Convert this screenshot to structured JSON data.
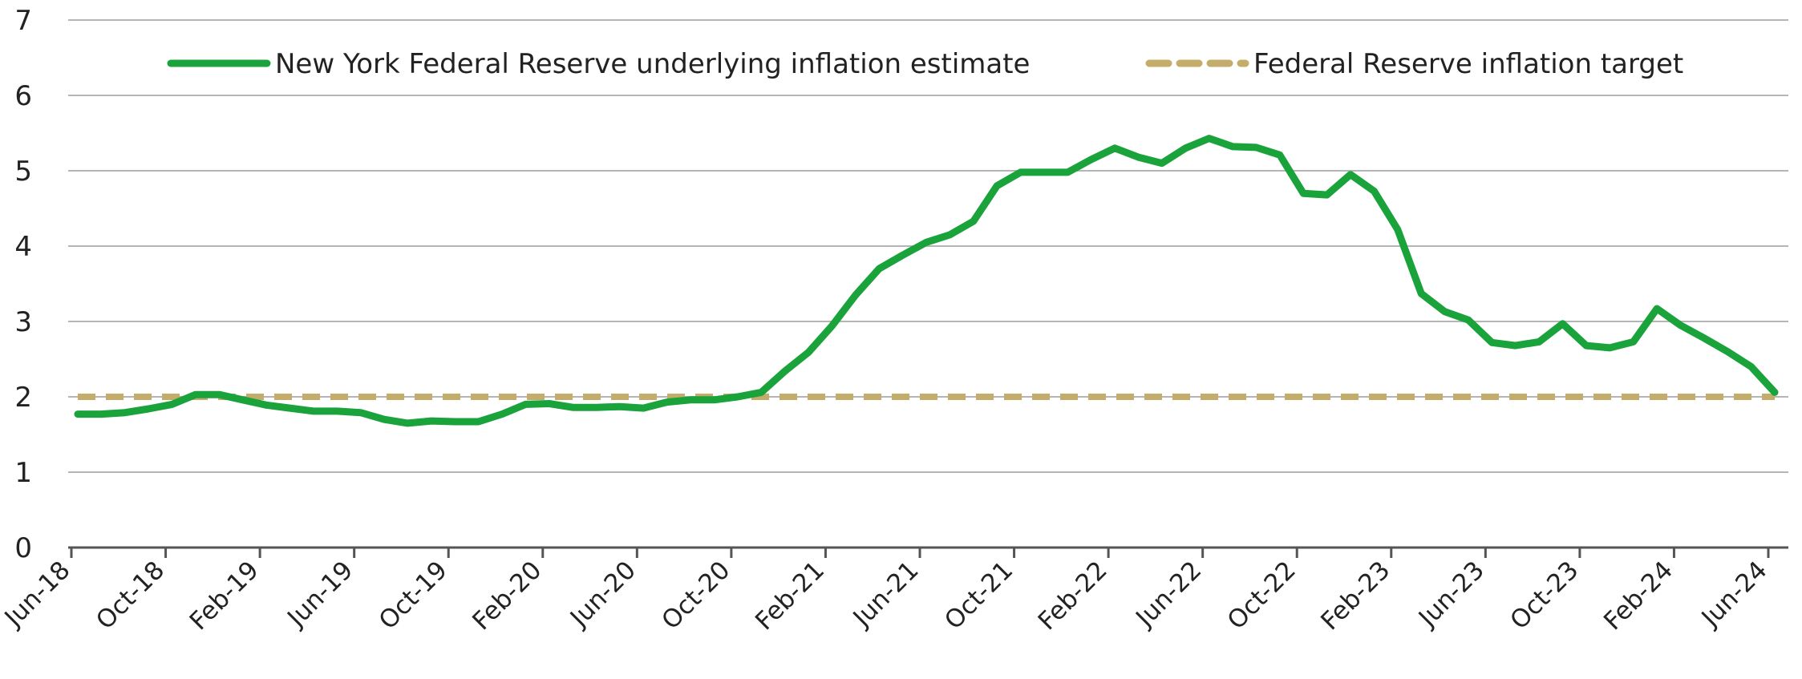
{
  "chart_data": {
    "type": "line",
    "title": "",
    "xlabel": "",
    "ylabel": "",
    "ylim": [
      0,
      7
    ],
    "yticks": [
      "0",
      "1",
      "2",
      "3",
      "4",
      "5",
      "6",
      "7"
    ],
    "x_tick_labels": [
      "Jun-18",
      "Oct-18",
      "Feb-19",
      "Jun-19",
      "Oct-19",
      "Feb-20",
      "Jun-20",
      "Oct-20",
      "Feb-21",
      "Jun-21",
      "Oct-21",
      "Feb-22",
      "Jun-22",
      "Oct-22",
      "Feb-23",
      "Jun-23",
      "Oct-23",
      "Feb-24",
      "Jun-24"
    ],
    "grid": true,
    "legend_position": "top",
    "series": [
      {
        "name": "New York Federal Reserve underlying inflation estimate",
        "color": "#1aa33a",
        "style": "solid",
        "values": [
          1.77,
          1.77,
          1.79,
          1.84,
          1.9,
          2.03,
          2.03,
          1.96,
          1.89,
          1.85,
          1.81,
          1.81,
          1.79,
          1.7,
          1.65,
          1.68,
          1.67,
          1.67,
          1.77,
          1.9,
          1.91,
          1.86,
          1.86,
          1.87,
          1.85,
          1.93,
          1.96,
          1.96,
          2.0,
          2.06,
          2.34,
          2.59,
          2.94,
          3.35,
          3.7,
          3.88,
          4.05,
          4.15,
          4.33,
          4.8,
          4.98,
          4.98,
          4.98,
          5.15,
          5.3,
          5.18,
          5.1,
          5.3,
          5.43,
          5.32,
          5.31,
          5.21,
          4.7,
          4.68,
          4.95,
          4.73,
          4.22,
          3.37,
          3.13,
          3.02,
          2.72,
          2.68,
          2.73,
          2.97,
          2.68,
          2.65,
          2.73,
          3.17,
          2.95,
          2.78,
          2.6,
          2.4,
          2.06
        ]
      },
      {
        "name": "Federal Reserve inflation target",
        "color": "#c4ad6a",
        "style": "dashed",
        "values": [
          2,
          2,
          2,
          2,
          2,
          2,
          2,
          2,
          2,
          2,
          2,
          2,
          2,
          2,
          2,
          2,
          2,
          2,
          2,
          2,
          2,
          2,
          2,
          2,
          2,
          2,
          2,
          2,
          2,
          2,
          2,
          2,
          2,
          2,
          2,
          2,
          2,
          2,
          2,
          2,
          2,
          2,
          2,
          2,
          2,
          2,
          2,
          2,
          2,
          2,
          2,
          2,
          2,
          2,
          2,
          2,
          2,
          2,
          2,
          2,
          2,
          2,
          2,
          2,
          2,
          2,
          2,
          2,
          2,
          2,
          2,
          2,
          2
        ]
      }
    ]
  }
}
